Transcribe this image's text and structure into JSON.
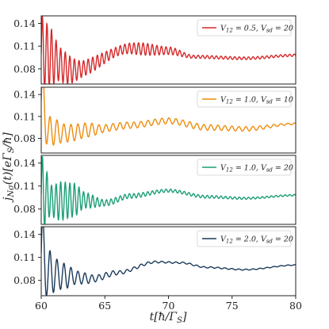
{
  "chart_data": {
    "type": "line",
    "layout": "four vertically stacked panels sharing the x axis",
    "xlabel": "t[ħ/Γ_S]",
    "ylabel": "j_{Nσ}(t)[eΓ_S/ħ]",
    "xlim": [
      60,
      80
    ],
    "ylim": [
      0.06,
      0.15
    ],
    "x_ticks": [
      60,
      65,
      70,
      75,
      80
    ],
    "y_ticks": [
      0.08,
      0.11,
      0.14
    ],
    "x_tick_labels": [
      "60",
      "65",
      "70",
      "75",
      "80"
    ],
    "y_tick_labels": [
      "0.08",
      "0.11",
      "0.14"
    ],
    "grid": false,
    "legend_position": "top-right of each panel",
    "panels": [
      {
        "name": "V12 = 0.5, Vsd = 20",
        "legend_html": "V<tspan font-size='7' dy='2'>12</tspan><tspan dy='-2'> = 0.5, V</tspan><tspan font-size='7' dy='2'>sd</tspan><tspan dy='-2'> = 20</tspan>",
        "color": "#d62728",
        "wave": {
          "baseline": [
            [
              60.0,
              0.1
            ],
            [
              62.5,
              0.078
            ],
            [
              67.0,
              0.107
            ],
            [
              70.0,
              0.104
            ],
            [
              72.0,
              0.096
            ],
            [
              76.0,
              0.094
            ],
            [
              80.0,
              0.098
            ]
          ],
          "amplitude": [
            [
              60.0,
              0.05
            ],
            [
              60.6,
              0.04
            ],
            [
              61.5,
              0.022
            ],
            [
              63.5,
              0.01
            ],
            [
              66.0,
              0.006
            ],
            [
              68.0,
              0.008
            ],
            [
              70.0,
              0.005
            ],
            [
              72.0,
              0.002
            ],
            [
              80.0,
              0.0015
            ]
          ],
          "period": 0.36
        }
      },
      {
        "name": "V12 = 1.0, Vsd = 10",
        "legend_html": "V<tspan font-size='7' dy='2'>12</tspan><tspan dy='-2'> = 1.0, V</tspan><tspan font-size='7' dy='2'>sd</tspan><tspan dy='-2'> = 10</tspan>",
        "color": "#ee8c0c",
        "wave": {
          "baseline": [
            [
              60.0,
              0.13
            ],
            [
              60.6,
              0.09
            ],
            [
              62.0,
              0.087
            ],
            [
              64.0,
              0.092
            ],
            [
              67.0,
              0.098
            ],
            [
              70.0,
              0.104
            ],
            [
              73.0,
              0.095
            ],
            [
              76.0,
              0.093
            ],
            [
              80.0,
              0.1
            ]
          ],
          "amplitude": [
            [
              60.0,
              0.05
            ],
            [
              60.6,
              0.02
            ],
            [
              62.0,
              0.012
            ],
            [
              63.5,
              0.01
            ],
            [
              65.0,
              0.005
            ],
            [
              68.0,
              0.004
            ],
            [
              72.0,
              0.004
            ],
            [
              76.0,
              0.003
            ],
            [
              80.0,
              0.001
            ]
          ],
          "period": 0.55
        }
      },
      {
        "name": "V12 = 1.0, Vsd = 20",
        "legend_html": "V<tspan font-size='7' dy='2'>12</tspan><tspan dy='-2'> = 1.0, V</tspan><tspan font-size='7' dy='2'>sd</tspan><tspan dy='-2'> = 20</tspan>",
        "color": "#1b9e77",
        "wave": {
          "baseline": [
            [
              60.0,
              0.1
            ],
            [
              61.0,
              0.09
            ],
            [
              63.0,
              0.092
            ],
            [
              65.0,
              0.088
            ],
            [
              67.0,
              0.097
            ],
            [
              70.0,
              0.104
            ],
            [
              73.0,
              0.096
            ],
            [
              76.0,
              0.094
            ],
            [
              80.0,
              0.098
            ]
          ],
          "amplitude": [
            [
              60.0,
              0.05
            ],
            [
              60.8,
              0.02
            ],
            [
              61.5,
              0.025
            ],
            [
              62.5,
              0.022
            ],
            [
              63.5,
              0.01
            ],
            [
              65.0,
              0.004
            ],
            [
              67.0,
              0.003
            ],
            [
              70.0,
              0.002
            ],
            [
              80.0,
              0.001
            ]
          ],
          "period": 0.36
        }
      },
      {
        "name": "V12 = 2.0, Vsd = 20",
        "legend_html": "V<tspan font-size='7' dy='2'>12</tspan><tspan dy='-2'> = 2.0, V</tspan><tspan font-size='7' dy='2'>sd</tspan><tspan dy='-2'> = 20</tspan>",
        "color": "#1b3a5c",
        "wave": {
          "baseline": [
            [
              60.0,
              0.115
            ],
            [
              60.5,
              0.09
            ],
            [
              62.0,
              0.085
            ],
            [
              64.0,
              0.082
            ],
            [
              66.0,
              0.09
            ],
            [
              69.0,
              0.104
            ],
            [
              71.0,
              0.103
            ],
            [
              73.0,
              0.097
            ],
            [
              76.0,
              0.094
            ],
            [
              80.0,
              0.1
            ]
          ],
          "amplitude": [
            [
              60.0,
              0.06
            ],
            [
              60.5,
              0.03
            ],
            [
              61.5,
              0.018
            ],
            [
              63.0,
              0.008
            ],
            [
              64.5,
              0.004
            ],
            [
              67.0,
              0.002
            ],
            [
              70.0,
              0.001
            ],
            [
              80.0,
              0.0005
            ]
          ],
          "period": 0.55
        }
      }
    ]
  }
}
